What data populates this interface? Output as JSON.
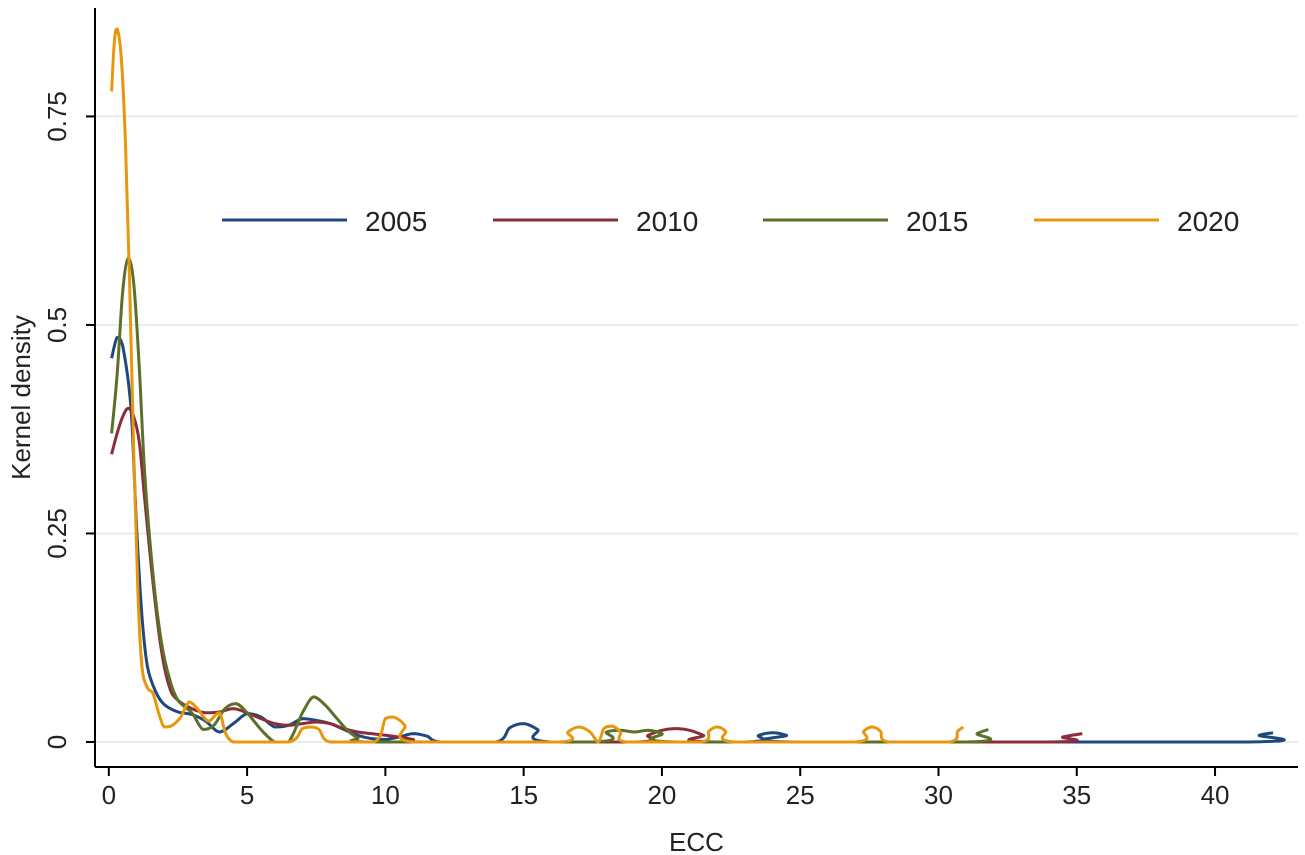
{
  "chart_data": {
    "type": "line",
    "title": "",
    "xlabel": "ECC",
    "ylabel": "Kernel density",
    "xlim": [
      -0.5,
      43
    ],
    "ylim": [
      -0.03,
      0.88
    ],
    "xticks": [
      0,
      5,
      10,
      15,
      20,
      25,
      30,
      35,
      40
    ],
    "yticks": [
      0,
      0.25,
      0.5,
      0.75
    ],
    "ytick_labels": [
      "0",
      "0.25",
      "0.5",
      "0.75"
    ],
    "grid": true,
    "legend_position": "top (single row inside plot)",
    "series": [
      {
        "name": "2005",
        "color": "#1f497d",
        "points": [
          [
            0.1,
            0.46
          ],
          [
            0.3,
            0.485
          ],
          [
            0.5,
            0.475
          ],
          [
            0.8,
            0.4
          ],
          [
            1.0,
            0.26
          ],
          [
            1.2,
            0.15
          ],
          [
            1.4,
            0.09
          ],
          [
            1.7,
            0.06
          ],
          [
            2.0,
            0.045
          ],
          [
            2.5,
            0.036
          ],
          [
            3.0,
            0.033
          ],
          [
            3.5,
            0.025
          ],
          [
            4.0,
            0.012
          ],
          [
            4.5,
            0.022
          ],
          [
            5.0,
            0.034
          ],
          [
            5.5,
            0.03
          ],
          [
            6.0,
            0.018
          ],
          [
            6.5,
            0.02
          ],
          [
            7.0,
            0.028
          ],
          [
            7.5,
            0.026
          ],
          [
            8.0,
            0.022
          ],
          [
            8.5,
            0.015
          ],
          [
            9.0,
            0.008
          ],
          [
            9.5,
            0.004
          ],
          [
            10.0,
            0.003
          ],
          [
            10.5,
            0.006
          ],
          [
            11.0,
            0.01
          ],
          [
            11.5,
            0.007
          ],
          [
            12.0,
            0.0
          ],
          [
            14.0,
            0.0
          ],
          [
            14.5,
            0.017
          ],
          [
            15.0,
            0.022
          ],
          [
            15.5,
            0.015
          ],
          [
            16.0,
            0.0
          ],
          [
            23.0,
            0.0
          ],
          [
            23.5,
            0.008
          ],
          [
            24.0,
            0.011
          ],
          [
            24.5,
            0.008
          ],
          [
            25.0,
            0.0
          ],
          [
            41.2,
            0.0
          ],
          [
            41.6,
            0.008
          ],
          [
            42.1,
            0.011
          ]
        ]
      },
      {
        "name": "2010",
        "color": "#8b2e3a",
        "points": [
          [
            0.1,
            0.345
          ],
          [
            0.3,
            0.37
          ],
          [
            0.5,
            0.39
          ],
          [
            0.7,
            0.4
          ],
          [
            0.9,
            0.39
          ],
          [
            1.1,
            0.36
          ],
          [
            1.3,
            0.29
          ],
          [
            1.6,
            0.19
          ],
          [
            1.9,
            0.11
          ],
          [
            2.2,
            0.065
          ],
          [
            2.5,
            0.05
          ],
          [
            3.0,
            0.04
          ],
          [
            3.5,
            0.035
          ],
          [
            4.0,
            0.036
          ],
          [
            4.5,
            0.04
          ],
          [
            5.0,
            0.035
          ],
          [
            5.5,
            0.028
          ],
          [
            6.0,
            0.022
          ],
          [
            6.5,
            0.02
          ],
          [
            7.0,
            0.022
          ],
          [
            7.5,
            0.024
          ],
          [
            8.0,
            0.022
          ],
          [
            8.5,
            0.016
          ],
          [
            9.0,
            0.012
          ],
          [
            9.5,
            0.01
          ],
          [
            10.0,
            0.008
          ],
          [
            10.5,
            0.006
          ],
          [
            11.0,
            0.003
          ],
          [
            11.5,
            0.0
          ],
          [
            19.0,
            0.0
          ],
          [
            19.5,
            0.008
          ],
          [
            20.0,
            0.014
          ],
          [
            20.5,
            0.016
          ],
          [
            21.0,
            0.014
          ],
          [
            21.5,
            0.008
          ],
          [
            22.0,
            0.0
          ],
          [
            34.0,
            0.0
          ],
          [
            34.5,
            0.006
          ],
          [
            35.2,
            0.01
          ]
        ]
      },
      {
        "name": "2015",
        "color": "#5b7029",
        "points": [
          [
            0.1,
            0.37
          ],
          [
            0.3,
            0.44
          ],
          [
            0.5,
            0.54
          ],
          [
            0.7,
            0.58
          ],
          [
            0.9,
            0.55
          ],
          [
            1.1,
            0.45
          ],
          [
            1.3,
            0.32
          ],
          [
            1.6,
            0.2
          ],
          [
            1.9,
            0.12
          ],
          [
            2.2,
            0.075
          ],
          [
            2.5,
            0.05
          ],
          [
            3.0,
            0.035
          ],
          [
            3.4,
            0.015
          ],
          [
            3.8,
            0.02
          ],
          [
            4.2,
            0.04
          ],
          [
            4.6,
            0.046
          ],
          [
            5.0,
            0.035
          ],
          [
            5.5,
            0.015
          ],
          [
            6.0,
            0.0
          ],
          [
            6.5,
            0.0
          ],
          [
            7.0,
            0.035
          ],
          [
            7.4,
            0.054
          ],
          [
            7.8,
            0.045
          ],
          [
            8.2,
            0.03
          ],
          [
            8.6,
            0.015
          ],
          [
            9.0,
            0.005
          ],
          [
            9.5,
            0.0
          ],
          [
            17.5,
            0.0
          ],
          [
            18.0,
            0.012
          ],
          [
            18.5,
            0.014
          ],
          [
            19.0,
            0.012
          ],
          [
            19.5,
            0.014
          ],
          [
            20.0,
            0.01
          ],
          [
            20.5,
            0.0
          ],
          [
            31.0,
            0.0
          ],
          [
            31.4,
            0.01
          ],
          [
            31.8,
            0.015
          ]
        ]
      },
      {
        "name": "2020",
        "color": "#e8960c",
        "points": [
          [
            0.1,
            0.78
          ],
          [
            0.2,
            0.84
          ],
          [
            0.3,
            0.855
          ],
          [
            0.45,
            0.82
          ],
          [
            0.6,
            0.72
          ],
          [
            0.75,
            0.55
          ],
          [
            0.9,
            0.35
          ],
          [
            1.05,
            0.18
          ],
          [
            1.2,
            0.09
          ],
          [
            1.4,
            0.065
          ],
          [
            1.6,
            0.058
          ],
          [
            1.8,
            0.035
          ],
          [
            2.0,
            0.018
          ],
          [
            2.3,
            0.02
          ],
          [
            2.6,
            0.03
          ],
          [
            2.9,
            0.048
          ],
          [
            3.2,
            0.04
          ],
          [
            3.6,
            0.025
          ],
          [
            4.0,
            0.035
          ],
          [
            4.5,
            0.0
          ],
          [
            6.5,
            0.0
          ],
          [
            7.0,
            0.016
          ],
          [
            7.3,
            0.018
          ],
          [
            7.6,
            0.015
          ],
          [
            8.0,
            0.0
          ],
          [
            9.6,
            0.0
          ],
          [
            10.0,
            0.028
          ],
          [
            10.3,
            0.03
          ],
          [
            10.7,
            0.02
          ],
          [
            11.0,
            0.0
          ],
          [
            16.3,
            0.0
          ],
          [
            16.6,
            0.012
          ],
          [
            17.0,
            0.018
          ],
          [
            17.4,
            0.012
          ],
          [
            17.7,
            0.0
          ],
          [
            17.9,
            0.016
          ],
          [
            18.2,
            0.019
          ],
          [
            18.5,
            0.012
          ],
          [
            18.7,
            0.0
          ],
          [
            21.4,
            0.0
          ],
          [
            21.7,
            0.013
          ],
          [
            22.0,
            0.018
          ],
          [
            22.3,
            0.013
          ],
          [
            22.6,
            0.0
          ],
          [
            27.0,
            0.0
          ],
          [
            27.3,
            0.013
          ],
          [
            27.6,
            0.018
          ],
          [
            27.9,
            0.013
          ],
          [
            28.2,
            0.0
          ],
          [
            30.4,
            0.0
          ],
          [
            30.7,
            0.013
          ],
          [
            30.9,
            0.018
          ]
        ]
      }
    ]
  }
}
